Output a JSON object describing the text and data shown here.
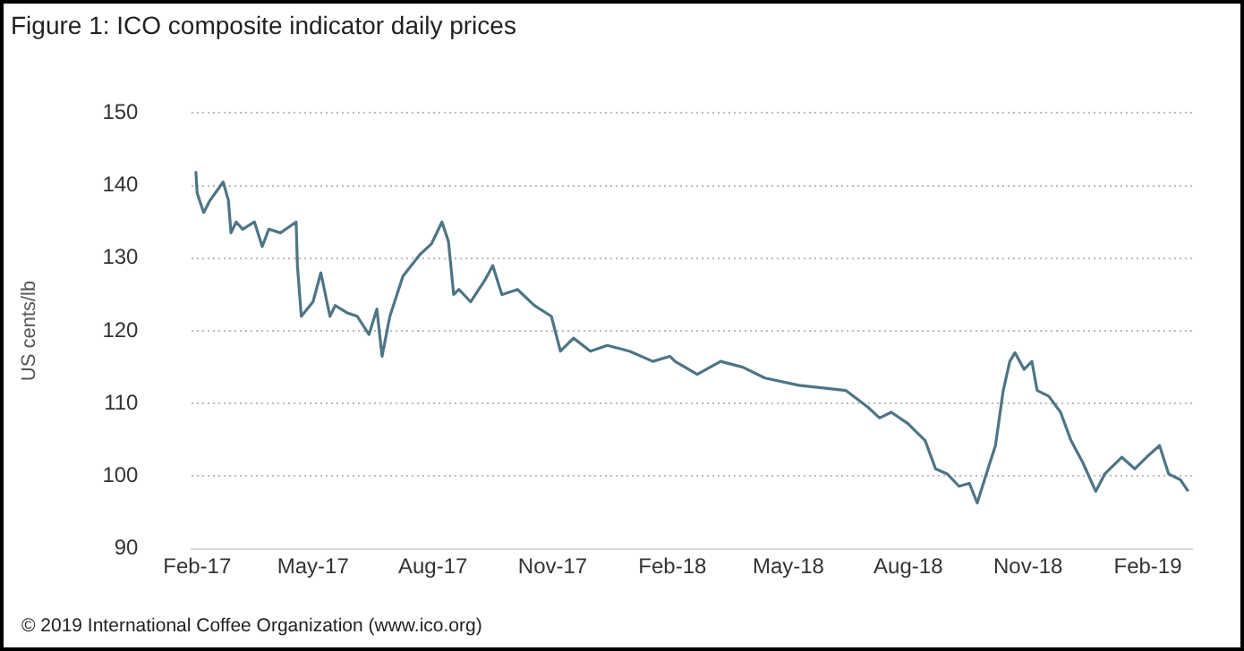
{
  "chart_data": {
    "type": "line",
    "title": "Figure 1: ICO composite indicator daily prices",
    "ylabel": "US cents/lb",
    "x": [
      "2017-01-31",
      "2017-02-01",
      "2017-02-06",
      "2017-02-11",
      "2017-02-15",
      "2017-02-21",
      "2017-02-25",
      "2017-02-27",
      "2017-03-03",
      "2017-03-08",
      "2017-03-17",
      "2017-03-23",
      "2017-03-28",
      "2017-04-06",
      "2017-04-18",
      "2017-04-19",
      "2017-04-22",
      "2017-05-01",
      "2017-05-07",
      "2017-05-14",
      "2017-05-18",
      "2017-05-27",
      "2017-06-04",
      "2017-06-13",
      "2017-06-19",
      "2017-06-23",
      "2017-06-29",
      "2017-07-09",
      "2017-07-22",
      "2017-07-31",
      "2017-08-08",
      "2017-08-13",
      "2017-08-17",
      "2017-08-21",
      "2017-08-30",
      "2017-09-10",
      "2017-09-16",
      "2017-09-23",
      "2017-10-05",
      "2017-10-18",
      "2017-10-31",
      "2017-11-07",
      "2017-11-17",
      "2017-11-30",
      "2017-12-13",
      "2017-12-30",
      "2018-01-17",
      "2018-01-30",
      "2018-02-03",
      "2018-02-20",
      "2018-03-10",
      "2018-03-27",
      "2018-04-13",
      "2018-05-09",
      "2018-06-14",
      "2018-07-01",
      "2018-07-10",
      "2018-07-19",
      "2018-08-01",
      "2018-08-14",
      "2018-08-22",
      "2018-08-31",
      "2018-09-09",
      "2018-09-17",
      "2018-09-23",
      "2018-09-30",
      "2018-10-07",
      "2018-10-13",
      "2018-10-18",
      "2018-10-22",
      "2018-10-29",
      "2018-11-04",
      "2018-11-08",
      "2018-11-17",
      "2018-11-26",
      "2018-12-04",
      "2018-12-13",
      "2018-12-23",
      "2018-12-30",
      "2019-01-12",
      "2019-01-22",
      "2019-01-31",
      "2019-02-10",
      "2019-02-17",
      "2019-02-26",
      "2019-03-04"
    ],
    "series": [
      {
        "color": "#4e7585",
        "values": [
          142,
          139,
          136.3,
          138,
          139,
          140.5,
          138,
          133.5,
          135,
          134,
          135,
          131.6,
          134,
          133.5,
          135,
          129,
          122,
          124,
          128,
          122,
          123.5,
          122.5,
          122,
          119.5,
          123,
          116.5,
          122,
          127.5,
          130.5,
          132,
          135,
          132.3,
          125,
          125.7,
          124,
          127,
          129,
          125,
          125.7,
          123.5,
          122,
          117.2,
          119,
          117.2,
          118,
          117.2,
          115.8,
          116.5,
          115.8,
          114,
          115.8,
          115,
          113.5,
          112.5,
          111.8,
          109.5,
          108,
          108.8,
          107.2,
          104.9,
          101,
          100.3,
          98.6,
          99,
          96.3,
          100.3,
          104.2,
          111.8,
          115.8,
          117,
          114.7,
          115.8,
          111.8,
          111,
          108.8,
          104.9,
          101.9,
          97.9,
          100.3,
          102.6,
          101,
          102.6,
          104.2,
          100.3,
          99.5,
          97.9
        ]
      }
    ],
    "xlim": [
      "2017-01-28",
      "2019-03-07"
    ],
    "xticks": [
      {
        "value": "2017-02-01",
        "label": "Feb-17"
      },
      {
        "value": "2017-05-01",
        "label": "May-17"
      },
      {
        "value": "2017-08-01",
        "label": "Aug-17"
      },
      {
        "value": "2017-11-01",
        "label": "Nov-17"
      },
      {
        "value": "2018-02-01",
        "label": "Feb-18"
      },
      {
        "value": "2018-05-01",
        "label": "May-18"
      },
      {
        "value": "2018-08-01",
        "label": "Aug-18"
      },
      {
        "value": "2018-11-01",
        "label": "Nov-18"
      },
      {
        "value": "2019-02-01",
        "label": "Feb-19"
      }
    ],
    "ylim": [
      90,
      150
    ],
    "yticks": [
      90,
      100,
      110,
      120,
      130,
      140,
      150
    ],
    "grid": "y",
    "marker": "none",
    "line_style": "solid",
    "legend": false,
    "annotations": [
      "© 2019 International Coffee Organization (www.ico.org)"
    ]
  }
}
